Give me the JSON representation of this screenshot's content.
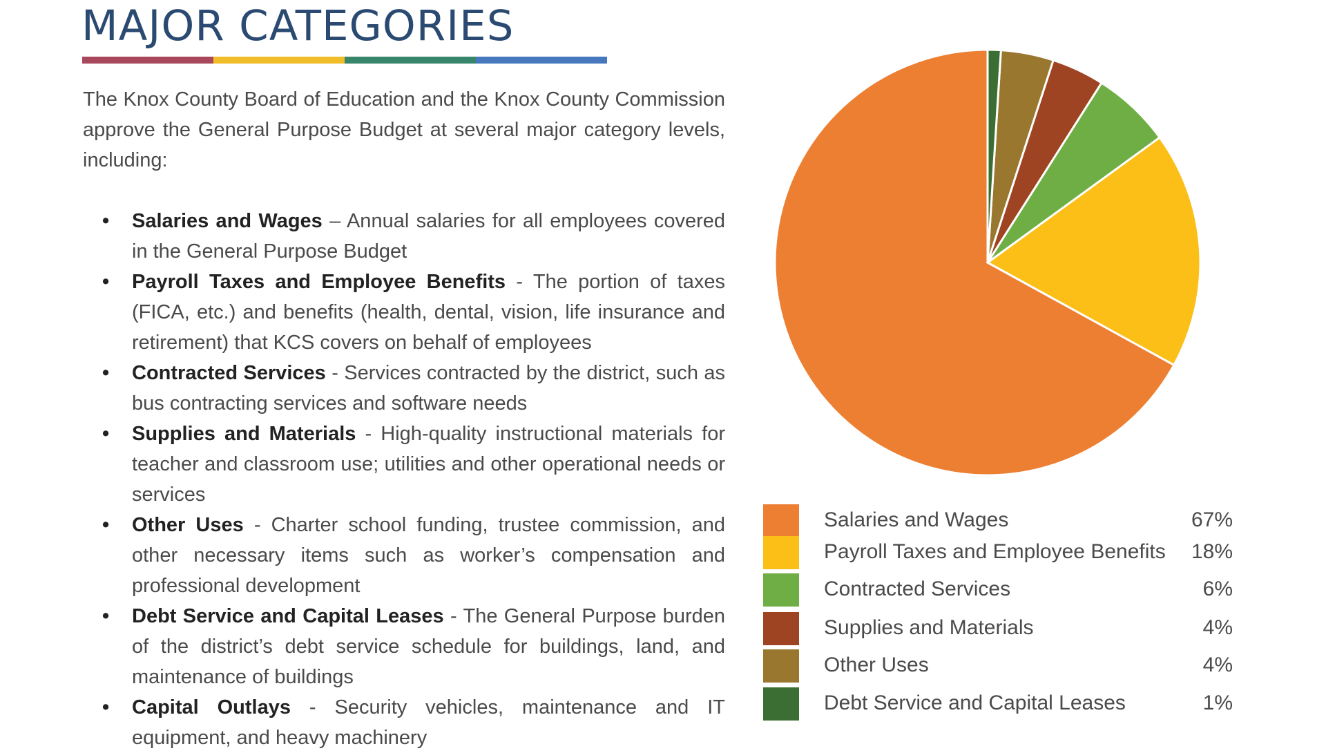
{
  "page": {
    "title": "MAJOR CATEGORIES",
    "rule_colors": [
      "#a9485d",
      "#f2bd2b",
      "#37856a",
      "#4778bd"
    ],
    "intro": "The Knox County Board of Education and the Knox County Commission approve the General Purpose Budget at several major category levels, including:"
  },
  "categories": [
    {
      "name": "Salaries and Wages",
      "sep": " – ",
      "desc": "Annual salaries for all employees covered in the General Purpose Budget"
    },
    {
      "name": "Payroll Taxes and Employee Benefits",
      "sep": " - ",
      "desc": "The portion of taxes (FICA, etc.) and benefits (health, dental, vision, life insurance and retirement) that KCS covers on behalf of employees"
    },
    {
      "name": "Contracted Services",
      "sep": " - ",
      "desc": "Services contracted by the district, such as bus contracting services and software needs"
    },
    {
      "name": "Supplies and Materials",
      "sep": " - ",
      "desc": "High-quality instructional materials for teacher and classroom use; utilities and other operational needs or services"
    },
    {
      "name": "Other Uses",
      "sep": " - ",
      "desc": "Charter school funding, trustee commission, and other necessary items such as worker’s compensation and professional development"
    },
    {
      "name": "Debt Service and Capital Leases",
      "sep": " - ",
      "desc": "The General Purpose burden of the district’s debt service schedule for buildings, land, and maintenance of buildings"
    },
    {
      "name": "Capital Outlays",
      "sep": " - ",
      "desc": "Security vehicles, maintenance and IT equipment, and heavy machinery"
    }
  ],
  "chart_data": {
    "type": "pie",
    "title": "",
    "legend_position": "bottom",
    "slices": [
      {
        "label": "Salaries and Wages",
        "value": 67,
        "display": "67%",
        "color": "#ed7f33"
      },
      {
        "label": "Payroll Taxes and Employee Benefits",
        "value": 18,
        "display": "18%",
        "color": "#fcbf18"
      },
      {
        "label": "Contracted Services",
        "value": 6,
        "display": "6%",
        "color": "#6fae45"
      },
      {
        "label": "Supplies and Materials",
        "value": 4,
        "display": "4%",
        "color": "#9f4422"
      },
      {
        "label": "Other Uses",
        "value": 4,
        "display": "4%",
        "color": "#9a772e"
      },
      {
        "label": "Debt Service and Capital Leases",
        "value": 1,
        "display": "1%",
        "color": "#3b6e32"
      }
    ]
  }
}
